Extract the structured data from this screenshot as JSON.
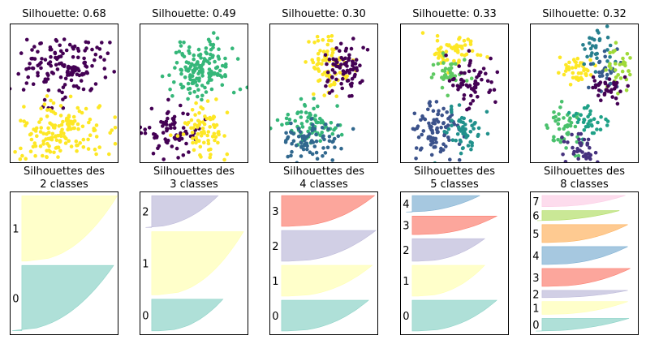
{
  "chart_data": {
    "type": "scatter",
    "colors": {
      "viridis2": [
        "#440154",
        "#fde725"
      ],
      "viridis4": [
        "#440154",
        "#31688e",
        "#35b779",
        "#fde725"
      ],
      "viridis5": [
        "#440154",
        "#3b528b",
        "#21918c",
        "#5ec962",
        "#fde725"
      ],
      "viridis8": [
        "#440154",
        "#46327e",
        "#365c8d",
        "#277f8e",
        "#1fa187",
        "#4ac16d",
        "#a0da39",
        "#fde725"
      ],
      "set3": [
        "#8dd3c7",
        "#ffffb3",
        "#bebada",
        "#fb8072",
        "#80b1d3",
        "#fdb462",
        "#b3de69",
        "#fccde5"
      ]
    },
    "scatter_plots": [
      {
        "title": "Silhouette: 0.68",
        "silhouette": 0.68,
        "k": 2,
        "palette": "viridis2",
        "blobs": [
          {
            "cx": 0.5,
            "cy": 0.68,
            "sx": 0.2,
            "sy": 0.11,
            "n": 150,
            "cluster": 0
          },
          {
            "cx": 0.45,
            "cy": 0.22,
            "sx": 0.2,
            "sy": 0.11,
            "n": 150,
            "cluster": 1
          }
        ]
      },
      {
        "title": "Silhouette: 0.49",
        "silhouette": 0.49,
        "k": 3,
        "palette": "viridis4",
        "blobs": [
          {
            "cx": 0.6,
            "cy": 0.68,
            "sx": 0.15,
            "sy": 0.1,
            "n": 150,
            "cluster": 2
          },
          {
            "cx": 0.3,
            "cy": 0.22,
            "sx": 0.12,
            "sy": 0.1,
            "n": 75,
            "cluster": 0
          },
          {
            "cx": 0.56,
            "cy": 0.22,
            "sx": 0.12,
            "sy": 0.1,
            "n": 75,
            "cluster": 3
          }
        ]
      },
      {
        "title": "Silhouette: 0.30",
        "silhouette": 0.3,
        "k": 4,
        "palette": "viridis4",
        "blobs": [
          {
            "cx": 0.55,
            "cy": 0.7,
            "sx": 0.1,
            "sy": 0.1,
            "n": 75,
            "cluster": 3
          },
          {
            "cx": 0.7,
            "cy": 0.68,
            "sx": 0.1,
            "sy": 0.1,
            "n": 75,
            "cluster": 0
          },
          {
            "cx": 0.4,
            "cy": 0.28,
            "sx": 0.15,
            "sy": 0.07,
            "n": 75,
            "cluster": 2
          },
          {
            "cx": 0.38,
            "cy": 0.15,
            "sx": 0.15,
            "sy": 0.07,
            "n": 75,
            "cluster": 1
          }
        ]
      },
      {
        "title": "Silhouette: 0.33",
        "silhouette": 0.33,
        "k": 5,
        "palette": "viridis5",
        "blobs": [
          {
            "cx": 0.52,
            "cy": 0.8,
            "sx": 0.12,
            "sy": 0.08,
            "n": 55,
            "cluster": 4
          },
          {
            "cx": 0.45,
            "cy": 0.64,
            "sx": 0.08,
            "sy": 0.06,
            "n": 40,
            "cluster": 3
          },
          {
            "cx": 0.65,
            "cy": 0.6,
            "sx": 0.1,
            "sy": 0.1,
            "n": 60,
            "cluster": 0
          },
          {
            "cx": 0.33,
            "cy": 0.23,
            "sx": 0.12,
            "sy": 0.1,
            "n": 90,
            "cluster": 1
          },
          {
            "cx": 0.58,
            "cy": 0.22,
            "sx": 0.1,
            "sy": 0.09,
            "n": 55,
            "cluster": 2
          }
        ]
      },
      {
        "title": "Silhouette: 0.32",
        "silhouette": 0.32,
        "k": 8,
        "palette": "viridis8",
        "blobs": [
          {
            "cx": 0.45,
            "cy": 0.67,
            "sx": 0.1,
            "sy": 0.06,
            "n": 45,
            "cluster": 7
          },
          {
            "cx": 0.62,
            "cy": 0.8,
            "sx": 0.08,
            "sy": 0.07,
            "n": 30,
            "cluster": 3
          },
          {
            "cx": 0.68,
            "cy": 0.67,
            "sx": 0.06,
            "sy": 0.06,
            "n": 30,
            "cluster": 2
          },
          {
            "cx": 0.82,
            "cy": 0.68,
            "sx": 0.06,
            "sy": 0.07,
            "n": 30,
            "cluster": 6
          },
          {
            "cx": 0.7,
            "cy": 0.53,
            "sx": 0.08,
            "sy": 0.05,
            "n": 35,
            "cluster": 0
          },
          {
            "cx": 0.3,
            "cy": 0.26,
            "sx": 0.1,
            "sy": 0.08,
            "n": 45,
            "cluster": 5
          },
          {
            "cx": 0.55,
            "cy": 0.3,
            "sx": 0.08,
            "sy": 0.05,
            "n": 35,
            "cluster": 4
          },
          {
            "cx": 0.48,
            "cy": 0.1,
            "sx": 0.1,
            "sy": 0.06,
            "n": 40,
            "cluster": 1
          }
        ]
      }
    ],
    "silhouette_plots": [
      {
        "title_line1": "Silhouettes des",
        "title_line2": "2 classes",
        "xlim": [
          -0.1,
          0.8
        ],
        "clusters": [
          {
            "label": "0",
            "size": 150,
            "max": 0.76,
            "min": -0.08,
            "color": "#8dd3c7"
          },
          {
            "label": "1",
            "size": 150,
            "max": 0.79,
            "min": 0.04,
            "color": "#ffffb3"
          }
        ]
      },
      {
        "title_line1": "Silhouettes des",
        "title_line2": "3 classes",
        "xlim": [
          -0.1,
          0.8
        ],
        "clusters": [
          {
            "label": "0",
            "size": 75,
            "max": 0.59,
            "min": 0.06,
            "color": "#8dd3c7"
          },
          {
            "label": "1",
            "size": 150,
            "max": 0.76,
            "min": 0.05,
            "color": "#ffffb3"
          },
          {
            "label": "2",
            "size": 75,
            "max": 0.55,
            "min": -0.05,
            "color": "#bebada"
          }
        ]
      },
      {
        "title_line1": "Silhouettes des",
        "title_line2": "4 classes",
        "xlim": [
          -0.1,
          0.8
        ],
        "clusters": [
          {
            "label": "0",
            "size": 75,
            "max": 0.72,
            "min": 0.05,
            "color": "#8dd3c7"
          },
          {
            "label": "1",
            "size": 75,
            "max": 0.75,
            "min": 0.06,
            "color": "#ffffb3"
          },
          {
            "label": "2",
            "size": 75,
            "max": 0.78,
            "min": 0.06,
            "color": "#bebada"
          },
          {
            "label": "3",
            "size": 75,
            "max": 0.77,
            "min": 0.06,
            "color": "#fb8072"
          }
        ]
      },
      {
        "title_line1": "Silhouettes des",
        "title_line2": "5 classes",
        "xlim": [
          -0.1,
          0.8
        ],
        "clusters": [
          {
            "label": "0",
            "size": 75,
            "max": 0.7,
            "min": 0.05,
            "color": "#8dd3c7"
          },
          {
            "label": "1",
            "size": 75,
            "max": 0.6,
            "min": 0.05,
            "color": "#ffffb3"
          },
          {
            "label": "2",
            "size": 55,
            "max": 0.6,
            "min": 0.05,
            "color": "#bebada"
          },
          {
            "label": "3",
            "size": 45,
            "max": 0.7,
            "min": 0.05,
            "color": "#fb8072"
          },
          {
            "label": "4",
            "size": 40,
            "max": 0.56,
            "min": -0.05,
            "color": "#80b1d3"
          }
        ]
      },
      {
        "title_line1": "Silhouettes des",
        "title_line2": "8 classes",
        "xlim": [
          -0.1,
          0.8
        ],
        "clusters": [
          {
            "label": "0",
            "size": 32,
            "max": 0.72,
            "min": -0.05,
            "color": "#8dd3c7"
          },
          {
            "label": "1",
            "size": 32,
            "max": 0.71,
            "min": 0.04,
            "color": "#ffffb3"
          },
          {
            "label": "2",
            "size": 18,
            "max": 0.71,
            "min": 0.04,
            "color": "#bebada"
          },
          {
            "label": "3",
            "size": 45,
            "max": 0.73,
            "min": 0.05,
            "color": "#fb8072"
          },
          {
            "label": "4",
            "size": 45,
            "max": 0.71,
            "min": 0.05,
            "color": "#80b1d3"
          },
          {
            "label": "5",
            "size": 45,
            "max": 0.71,
            "min": 0.05,
            "color": "#fdb462"
          },
          {
            "label": "6",
            "size": 25,
            "max": 0.64,
            "min": -0.04,
            "color": "#b3de69"
          },
          {
            "label": "7",
            "size": 28,
            "max": 0.69,
            "min": 0.05,
            "color": "#fccde5"
          }
        ]
      }
    ]
  }
}
